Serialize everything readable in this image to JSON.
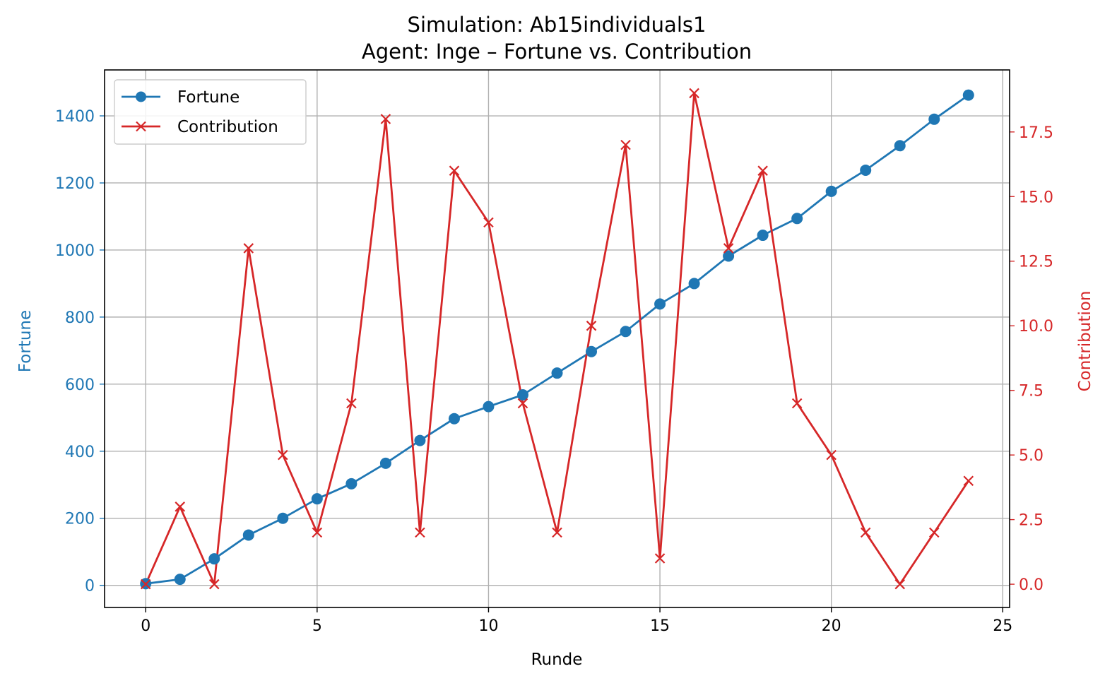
{
  "chart_data": {
    "type": "line",
    "title": "Simulation: Ab15individuals1",
    "subtitle": "Agent: Inge – Fortune vs. Contribution",
    "xlabel": "Runde",
    "ylabel_left": "Fortune",
    "ylabel_right": "Contribution",
    "xlim": [
      -1.2,
      25.2
    ],
    "ylim_left": [
      -66,
      1537
    ],
    "ylim_right": [
      -0.9,
      19.9
    ],
    "x_ticks": [
      0,
      5,
      10,
      15,
      20,
      25
    ],
    "y_ticks_left": [
      0,
      200,
      400,
      600,
      800,
      1000,
      1200,
      1400
    ],
    "y_ticks_right": [
      0.0,
      2.5,
      5.0,
      7.5,
      10.0,
      12.5,
      15.0,
      17.5
    ],
    "grid": true,
    "legend_position": "top-left",
    "x": [
      0,
      1,
      2,
      3,
      4,
      5,
      6,
      7,
      8,
      9,
      10,
      11,
      12,
      13,
      14,
      15,
      16,
      17,
      18,
      19,
      20,
      21,
      22,
      23,
      24
    ],
    "series": [
      {
        "name": "Fortune",
        "axis": "left",
        "color": "#1f77b4",
        "marker": "circle",
        "values": [
          5,
          18,
          79,
          150,
          200,
          258,
          303,
          364,
          432,
          497,
          533,
          568,
          633,
          697,
          757,
          839,
          900,
          982,
          1044,
          1094,
          1175,
          1238,
          1311,
          1390,
          1462
        ]
      },
      {
        "name": "Contribution",
        "axis": "right",
        "color": "#d62728",
        "marker": "x",
        "values": [
          0,
          3,
          0,
          13,
          5,
          2,
          7,
          18,
          2,
          16,
          14,
          7,
          2,
          10,
          17,
          1,
          19,
          13,
          16,
          7,
          5,
          2,
          0,
          2,
          4
        ]
      }
    ]
  }
}
